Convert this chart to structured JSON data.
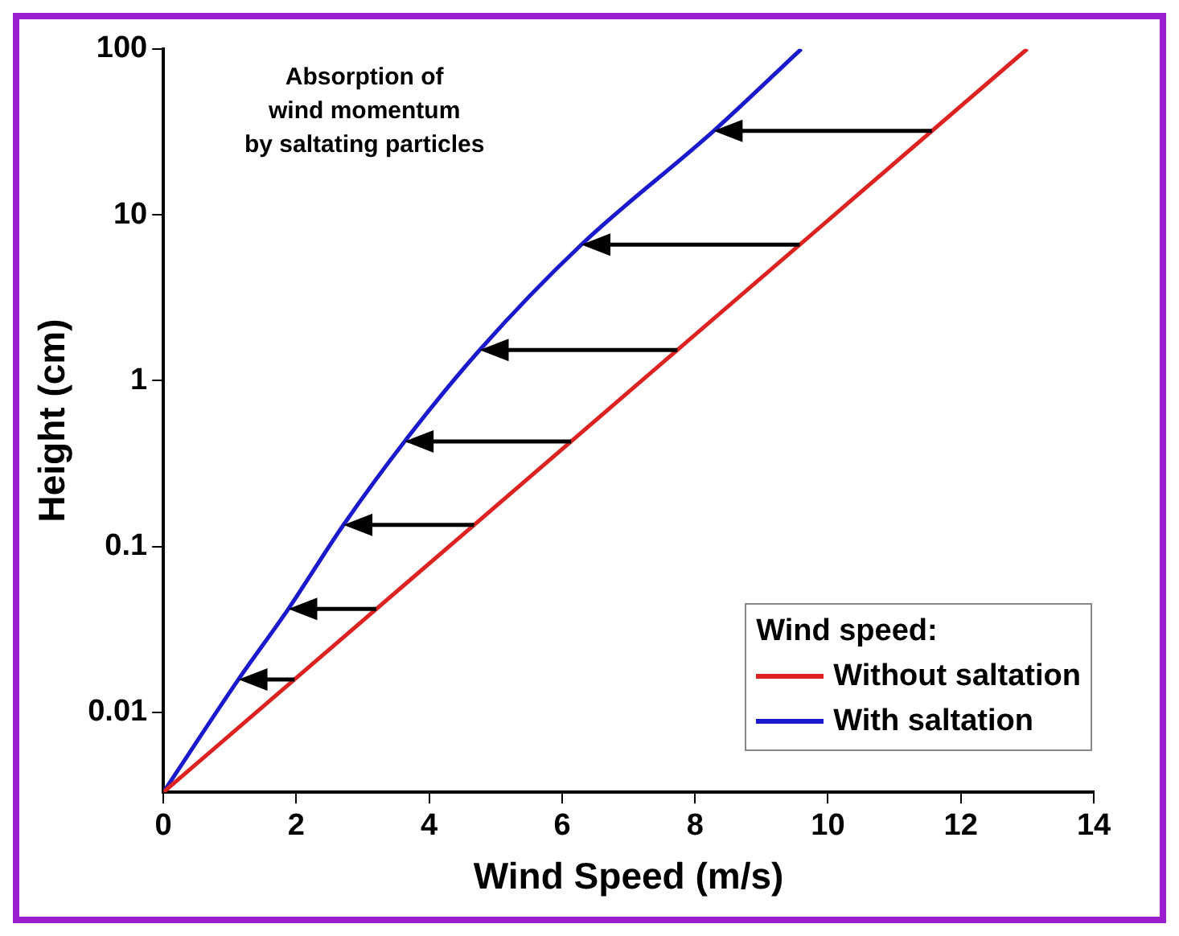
{
  "chart_data": {
    "type": "line",
    "xlabel": "Wind Speed (m/s)",
    "ylabel": "Height (cm)",
    "legend_title": "Wind speed:",
    "legend": "bottom right",
    "log": "y",
    "grid": false,
    "marker": "none",
    "line_style": "solid",
    "annotations": [
      "Absorption of\nwind momentum\nby saltating particles"
    ],
    "xlim": [
      0,
      14
    ],
    "xticks": [
      0,
      2,
      4,
      6,
      8,
      10,
      12,
      14
    ],
    "ylim": [
      0.0033,
      100
    ],
    "yticks": [
      0.01,
      0.1,
      1,
      10,
      100
    ],
    "series": [
      {
        "name": "Without saltation",
        "color": "#dd2222",
        "x": [
          0,
          13
        ],
        "values": [
          0.0033,
          100
        ]
      },
      {
        "name": "With saltation",
        "color": "#1a1acc",
        "x": [
          0,
          1.13,
          1.88,
          2.71,
          3.63,
          4.76,
          6.29,
          8.28,
          9.6
        ],
        "values": [
          0.0033,
          0.0158,
          0.042,
          0.135,
          0.43,
          1.53,
          6.6,
          32,
          100
        ]
      }
    ]
  }
}
